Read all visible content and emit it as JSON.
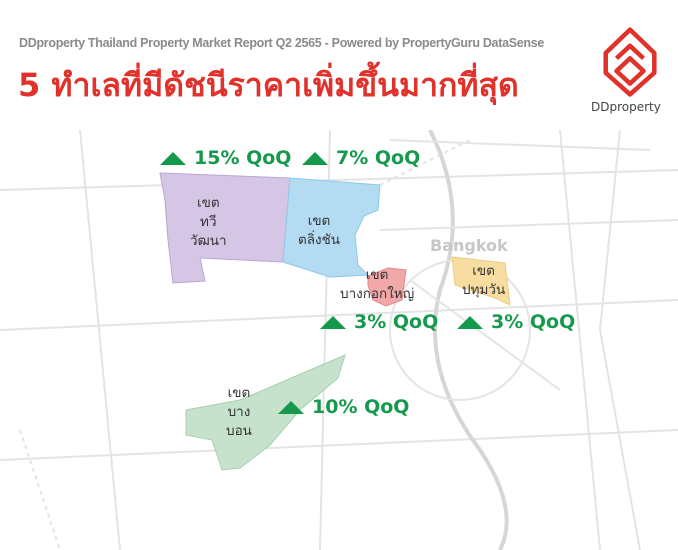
{
  "header": {
    "subtitle": "DDproperty Thailand Property Market Report Q2 2565 - Powered by PropertyGuru DataSense",
    "title": "5 ทำเลที่มีดัชนีราคาเพิ่มขึ้นมากที่สุด"
  },
  "logo": {
    "text": "DDproperty",
    "color": "#e0312b"
  },
  "map": {
    "city_label": "Bangkok",
    "districts": [
      {
        "name_line1": "เขต",
        "name_line2": "ทวี",
        "name_line3": "วัฒนา",
        "change": "15% QoQ",
        "color": "#d5c6e6",
        "trend": "up"
      },
      {
        "name_line1": "เขต",
        "name_line2": "ตลิ่งชัน",
        "change": "7% QoQ",
        "color": "#b3dcf2",
        "trend": "up"
      },
      {
        "name_line1": "เขต",
        "name_line2": "บางกอกใหญ่",
        "change": "3% QoQ",
        "color": "#f2a8a8",
        "trend": "up"
      },
      {
        "name_line1": "เขต",
        "name_line2": "ปทุมวัน",
        "change": "3% QoQ",
        "color": "#f7deA0",
        "trend": "up"
      },
      {
        "name_line1": "เขต",
        "name_line2": "บาง",
        "name_line3": "บอน",
        "change": "10% QoQ",
        "color": "#c6e2cc",
        "trend": "up"
      }
    ],
    "increase_color": "#15994c"
  }
}
